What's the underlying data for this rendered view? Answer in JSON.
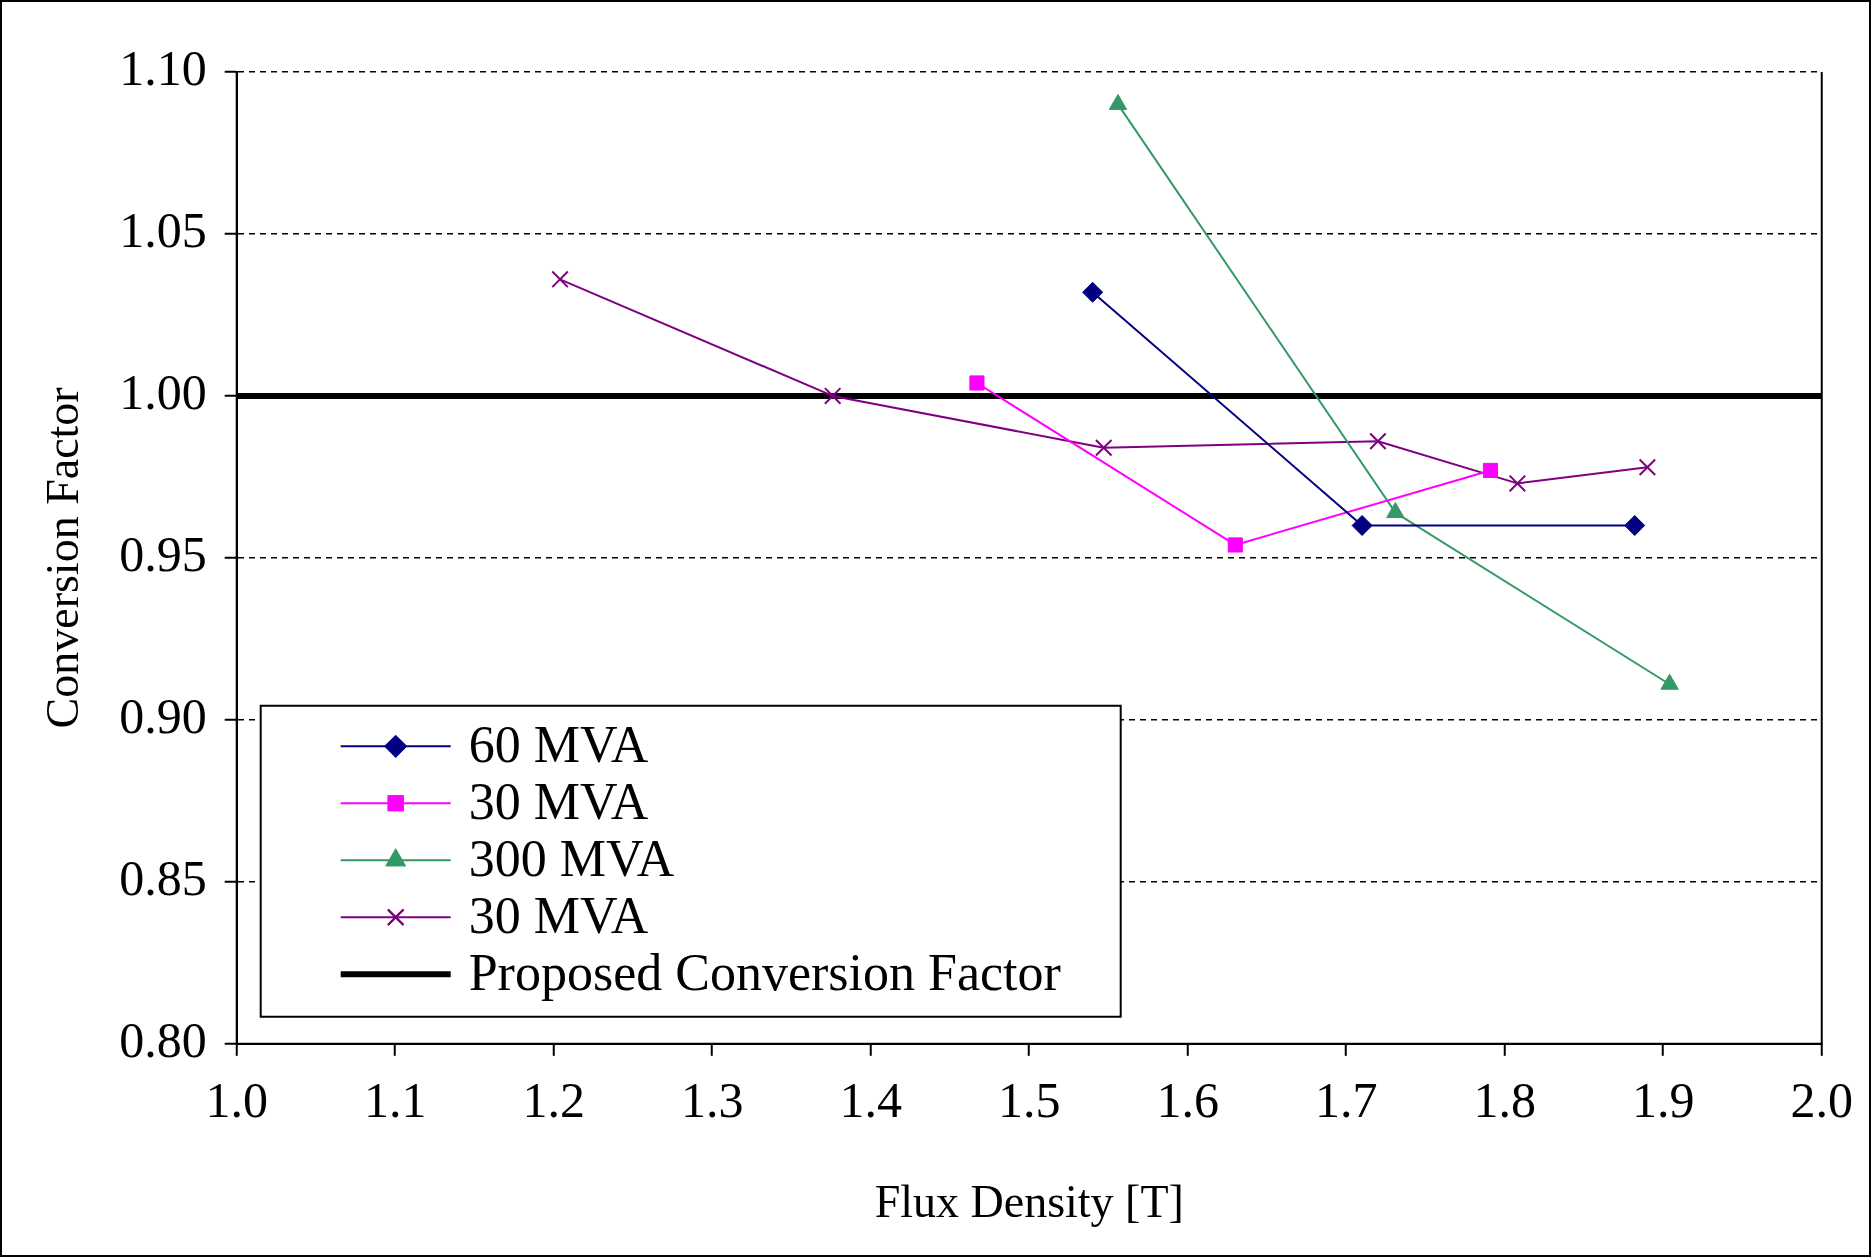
{
  "chart_data": {
    "type": "line",
    "xlabel": "Flux Density [T]",
    "ylabel": "Conversion Factor",
    "xlim": [
      1.0,
      2.0
    ],
    "xticks": [
      {
        "value": 1.0,
        "label": "1.0"
      },
      {
        "value": 1.1,
        "label": "1.1"
      },
      {
        "value": 1.2,
        "label": "1.2"
      },
      {
        "value": 1.3,
        "label": "1.3"
      },
      {
        "value": 1.4,
        "label": "1.4"
      },
      {
        "value": 1.5,
        "label": "1.5"
      },
      {
        "value": 1.6,
        "label": "1.6"
      },
      {
        "value": 1.7,
        "label": "1.7"
      },
      {
        "value": 1.8,
        "label": "1.8"
      },
      {
        "value": 1.9,
        "label": "1.9"
      },
      {
        "value": 2.0,
        "label": "2.0"
      }
    ],
    "ylim": [
      0.8,
      1.1
    ],
    "yticks": [
      {
        "value": 0.8,
        "label": "0.80"
      },
      {
        "value": 0.85,
        "label": "0.85"
      },
      {
        "value": 0.9,
        "label": "0.90"
      },
      {
        "value": 0.95,
        "label": "0.95"
      },
      {
        "value": 1.0,
        "label": "1.00"
      },
      {
        "value": 1.05,
        "label": "1.05"
      },
      {
        "value": 1.1,
        "label": "1.10"
      }
    ],
    "grid": "y",
    "legend": "bottom left",
    "series": [
      {
        "name": "60 MVA",
        "color": "#000080",
        "marker": "diamond",
        "x": [
          1.54,
          1.71,
          1.882
        ],
        "values": [
          1.032,
          0.96,
          0.96
        ]
      },
      {
        "name": "30 MVA",
        "color": "#ff00ff",
        "marker": "square",
        "x": [
          1.467,
          1.63,
          1.791
        ],
        "values": [
          1.004,
          0.954,
          0.977
        ]
      },
      {
        "name": "300 MVA",
        "color": "#339966",
        "marker": "triangle",
        "x": [
          1.556,
          1.731,
          1.904
        ],
        "values": [
          1.09,
          0.964,
          0.911
        ]
      },
      {
        "name": "30 MVA",
        "color": "#800080",
        "marker": "cross",
        "x": [
          1.204,
          1.376,
          1.547,
          1.72,
          1.808,
          1.89
        ],
        "values": [
          1.036,
          1.0,
          0.984,
          0.986,
          0.973,
          0.978
        ]
      }
    ],
    "ref_lines": [
      {
        "axis": "y",
        "value": 1.0,
        "label": "Proposed Conversion Factor",
        "color": "#000000"
      }
    ]
  }
}
